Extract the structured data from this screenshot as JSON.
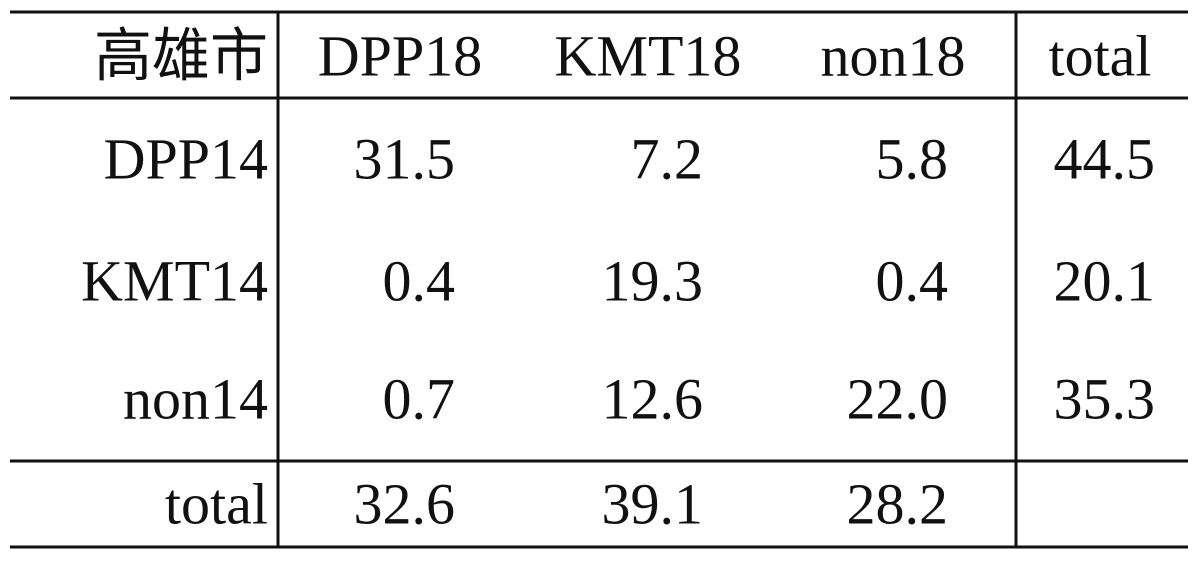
{
  "table": {
    "header": [
      "高雄市",
      "DPP18",
      "KMT18",
      "non18",
      "total"
    ],
    "rows": [
      [
        "DPP14",
        "31.5",
        "7.2",
        "5.8",
        "44.5"
      ],
      [
        "KMT14",
        "0.4",
        "19.3",
        "0.4",
        "20.1"
      ],
      [
        "non14",
        "0.7",
        "12.6",
        "22.0",
        "35.3"
      ],
      [
        "total",
        "32.6",
        "39.1",
        "28.2"
      ]
    ]
  }
}
